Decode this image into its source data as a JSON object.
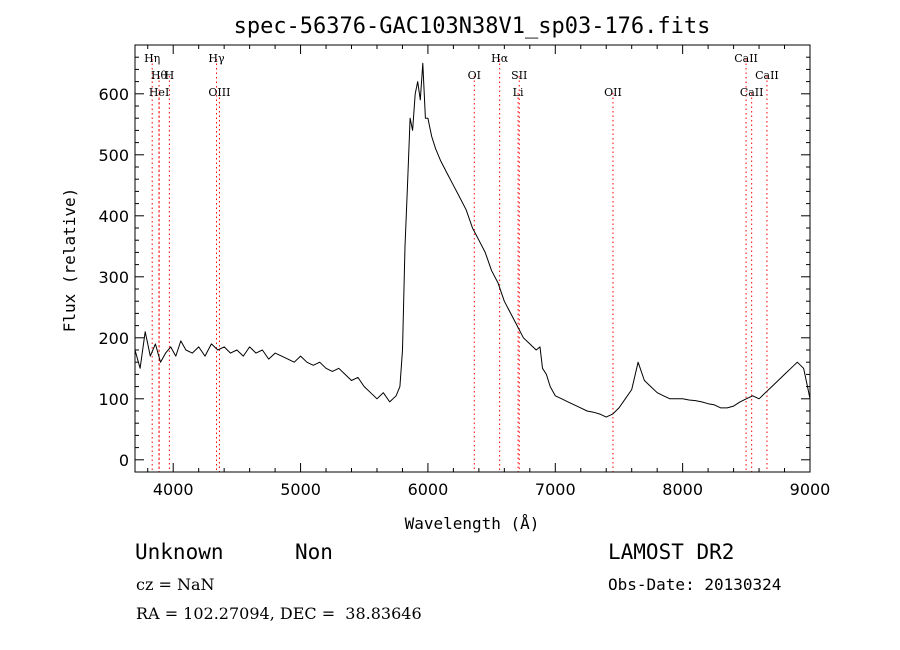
{
  "chart_data": {
    "type": "line",
    "title": "spec-56376-GAC103N38V1_sp03-176.fits",
    "xlabel": "Wavelength (Å)",
    "ylabel": "Flux (relative)",
    "xlim": [
      3700,
      9000
    ],
    "ylim": [
      -20,
      680
    ],
    "xticks": [
      4000,
      5000,
      6000,
      7000,
      8000,
      9000
    ],
    "yticks": [
      0,
      100,
      200,
      300,
      400,
      500,
      600
    ],
    "grid": false,
    "line_color": "#000000",
    "marker_color": "#ff0000",
    "series": [
      {
        "x": [
          3700,
          3740,
          3780,
          3820,
          3860,
          3900,
          3940,
          3980,
          4020,
          4060,
          4100,
          4150,
          4200,
          4250,
          4300,
          4350,
          4400,
          4450,
          4500,
          4550,
          4600,
          4650,
          4700,
          4750,
          4800,
          4850,
          4900,
          4950,
          5000,
          5050,
          5100,
          5150,
          5200,
          5250,
          5300,
          5350,
          5400,
          5450,
          5500,
          5550,
          5600,
          5650,
          5700,
          5750,
          5780,
          5800,
          5820,
          5840,
          5860,
          5880,
          5900,
          5920,
          5940,
          5960,
          5980,
          6000,
          6030,
          6060,
          6100,
          6150,
          6200,
          6250,
          6300,
          6350,
          6400,
          6450,
          6500,
          6550,
          6600,
          6650,
          6700,
          6750,
          6800,
          6850,
          6880,
          6900,
          6930,
          6960,
          7000,
          7050,
          7100,
          7150,
          7200,
          7250,
          7300,
          7350,
          7400,
          7450,
          7500,
          7550,
          7600,
          7650,
          7700,
          7750,
          7800,
          7850,
          7900,
          7950,
          8000,
          8050,
          8100,
          8150,
          8200,
          8250,
          8300,
          8350,
          8400,
          8450,
          8500,
          8550,
          8600,
          8650,
          8700,
          8750,
          8800,
          8850,
          8900,
          8950,
          8980,
          9000
        ],
        "y": [
          180,
          150,
          210,
          170,
          190,
          160,
          175,
          185,
          170,
          195,
          180,
          175,
          185,
          170,
          190,
          180,
          185,
          175,
          180,
          170,
          185,
          175,
          180,
          165,
          175,
          170,
          165,
          160,
          170,
          160,
          155,
          160,
          150,
          145,
          150,
          140,
          130,
          135,
          120,
          110,
          100,
          110,
          95,
          105,
          120,
          180,
          350,
          450,
          560,
          540,
          600,
          620,
          590,
          650,
          560,
          560,
          530,
          510,
          490,
          470,
          450,
          430,
          410,
          380,
          360,
          340,
          310,
          290,
          260,
          240,
          220,
          200,
          190,
          180,
          185,
          150,
          140,
          120,
          105,
          100,
          95,
          90,
          85,
          80,
          78,
          75,
          70,
          75,
          85,
          100,
          115,
          160,
          130,
          120,
          110,
          105,
          100,
          100,
          100,
          98,
          97,
          95,
          92,
          90,
          85,
          85,
          88,
          95,
          100,
          105,
          100,
          110,
          120,
          130,
          140,
          150,
          160,
          150,
          120,
          100
        ]
      }
    ],
    "line_markers": [
      {
        "x": 3835,
        "label": "Hη",
        "row": 0
      },
      {
        "x": 3889,
        "label": "Hθ",
        "row": 1
      },
      {
        "x": 3970,
        "label": "H",
        "row": 1
      },
      {
        "x": 3889,
        "label": "HeI",
        "row": 2
      },
      {
        "x": 4340,
        "label": "Hγ",
        "row": 0
      },
      {
        "x": 4363,
        "label": "OIII",
        "row": 2
      },
      {
        "x": 6364,
        "label": "OI",
        "row": 1
      },
      {
        "x": 6563,
        "label": "Hα",
        "row": 0
      },
      {
        "x": 6717,
        "label": "SII",
        "row": 1
      },
      {
        "x": 6708,
        "label": "Li",
        "row": 2
      },
      {
        "x": 7453,
        "label": "OII",
        "row": 2
      },
      {
        "x": 8498,
        "label": "CaII",
        "row": 0
      },
      {
        "x": 8662,
        "label": "CaII",
        "row": 1
      },
      {
        "x": 8542,
        "label": "CaII",
        "row": 2
      }
    ]
  },
  "info": {
    "class_text": "Unknown",
    "subclass_text": "Non",
    "survey": "LAMOST DR2",
    "cz": "cz = NaN",
    "obs_date": "Obs-Date: 20130324",
    "coords": "RA = 102.27094, DEC =  38.83646"
  }
}
